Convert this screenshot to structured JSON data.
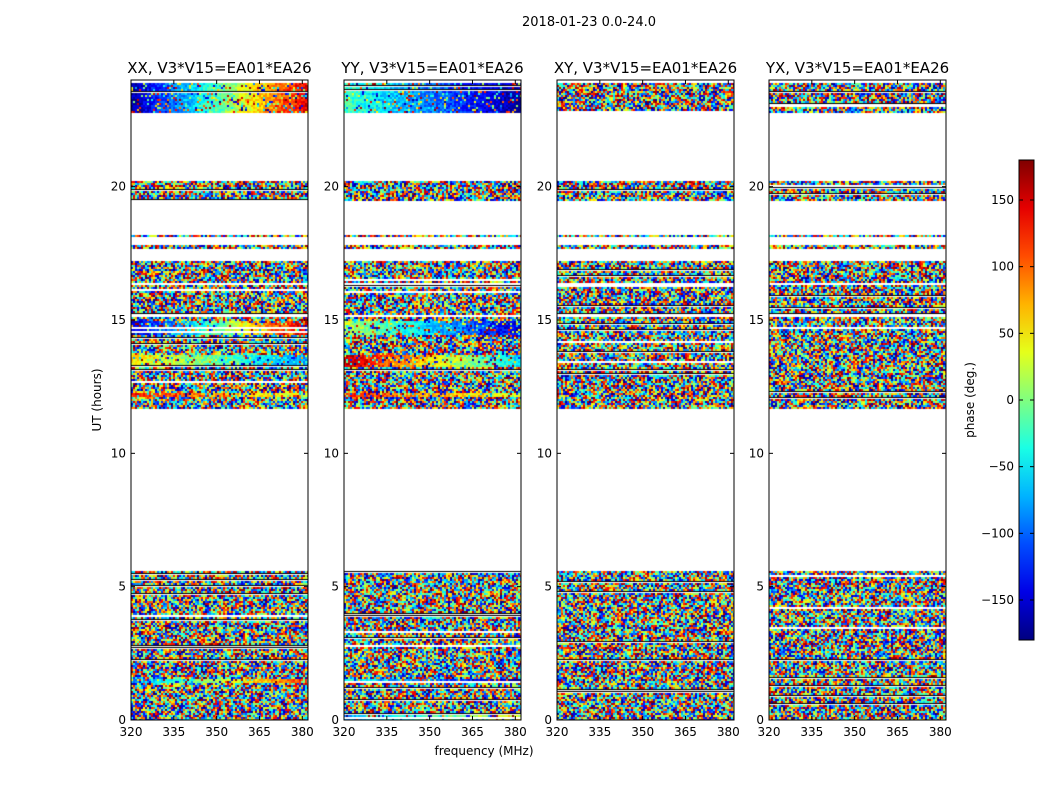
{
  "chart_data": {
    "type": "heatmap",
    "suptitle": "2018-01-23 0.0-24.0",
    "xlabel": "frequency (MHz)",
    "ylabel": "UT (hours)",
    "xlim": [
      320,
      382
    ],
    "ylim": [
      0,
      24
    ],
    "x_ticks": [
      320,
      335,
      350,
      365,
      380
    ],
    "y_ticks": [
      0,
      5,
      10,
      15,
      20
    ],
    "panels": [
      {
        "title": "XX, V3*V15=EA01*EA26",
        "pol": "XX",
        "coherent_bands": [
          {
            "t0": 23.9,
            "t1": 22.8,
            "phase_start": -170,
            "phase_end": 150
          },
          {
            "t0": 15.0,
            "t1": 14.5,
            "phase_start": -160,
            "phase_end": 160
          },
          {
            "t0": 13.7,
            "t1": 13.3,
            "phase_start": 50,
            "phase_end": -80
          },
          {
            "t0": 12.3,
            "t1": 12.15,
            "phase_start": 130,
            "phase_end": 20
          },
          {
            "t0": 1.6,
            "t1": 1.4,
            "phase_start": -80,
            "phase_end": 120
          },
          {
            "t0": 0.1,
            "t1": 0.0,
            "phase_start": -170,
            "phase_end": 150
          }
        ]
      },
      {
        "title": "YY, V3*V15=EA01*EA26",
        "pol": "YY",
        "coherent_bands": [
          {
            "t0": 23.9,
            "t1": 22.8,
            "phase_start": -20,
            "phase_end": -170
          },
          {
            "t0": 15.0,
            "t1": 14.5,
            "phase_start": 20,
            "phase_end": -150
          },
          {
            "t0": 13.7,
            "t1": 13.3,
            "phase_start": 160,
            "phase_end": -60
          },
          {
            "t0": 12.3,
            "t1": 12.15,
            "phase_start": 130,
            "phase_end": 20
          },
          {
            "t0": 1.6,
            "t1": 1.4,
            "phase_start": -40,
            "phase_end": -170
          },
          {
            "t0": 0.3,
            "t1": 0.0,
            "phase_start": -80,
            "phase_end": 40
          }
        ]
      },
      {
        "title": "XY, V3*V15=EA01*EA26",
        "pol": "XY",
        "coherent_bands": []
      },
      {
        "title": "YX, V3*V15=EA01*EA26",
        "pol": "YX",
        "coherent_bands": []
      }
    ],
    "data_rows_hours": [
      [
        23.9,
        22.8
      ],
      [
        20.2,
        19.5
      ],
      [
        18.2,
        18.1
      ],
      [
        17.8,
        17.7
      ],
      [
        17.2,
        16.4
      ],
      [
        16.3,
        15.2
      ],
      [
        15.1,
        11.7
      ],
      [
        5.6,
        0.0
      ]
    ],
    "colorbar": {
      "label": "phase (deg.)",
      "range": [
        -180,
        180
      ],
      "ticks": [
        -150,
        -100,
        -50,
        0,
        50,
        100,
        150
      ],
      "tick_labels": [
        "−150",
        "−100",
        "−50",
        "0",
        "50",
        "100",
        "150"
      ],
      "colormap": "jet"
    }
  }
}
